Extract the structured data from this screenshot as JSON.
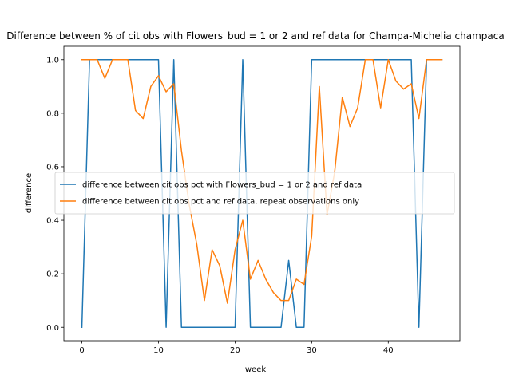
{
  "chart_data": {
    "type": "line",
    "title": "Difference between % of cit obs with Flowers_bud = 1 or 2 and ref data for Champa-Michelia champaca",
    "xlabel": "week",
    "ylabel": "difference",
    "xlim": [
      -2.35,
      49.35
    ],
    "ylim": [
      -0.05,
      1.05
    ],
    "xticks": [
      0,
      10,
      20,
      30,
      40
    ],
    "yticks": [
      0.0,
      0.2,
      0.4,
      0.6,
      0.8,
      1.0
    ],
    "xtick_labels": [
      "0",
      "10",
      "20",
      "30",
      "40"
    ],
    "ytick_labels": [
      "0.0",
      "0.2",
      "0.4",
      "0.6",
      "0.8",
      "1.0"
    ],
    "grid": false,
    "legend_position": "center-right",
    "series": [
      {
        "name": "difference between cit obs pct with Flowers_bud = 1 or 2 and ref data",
        "color": "#1f77b4",
        "x": [
          0,
          1,
          2,
          3,
          4,
          5,
          6,
          7,
          8,
          9,
          10,
          11,
          12,
          13,
          14,
          15,
          16,
          17,
          18,
          19,
          20,
          21,
          22,
          23,
          24,
          25,
          26,
          27,
          28,
          29,
          30,
          31,
          32,
          33,
          34,
          35,
          36,
          37,
          38,
          39,
          40,
          41,
          42,
          43,
          44,
          45,
          46,
          47
        ],
        "values": [
          0,
          1,
          1,
          1,
          1,
          1,
          1,
          1,
          1,
          1,
          1,
          0,
          1,
          0,
          0,
          0,
          0,
          0,
          0,
          0,
          0,
          1,
          0,
          0,
          0,
          0,
          0,
          0.25,
          0,
          0,
          1,
          1,
          1,
          1,
          1,
          1,
          1,
          1,
          1,
          1,
          1,
          1,
          1,
          1,
          0,
          1,
          1,
          1
        ]
      },
      {
        "name": "difference between cit obs pct and ref data, repeat observations only",
        "color": "#ff7f0e",
        "x": [
          0,
          1,
          2,
          3,
          4,
          5,
          6,
          7,
          8,
          9,
          10,
          11,
          12,
          13,
          14,
          15,
          16,
          17,
          18,
          19,
          20,
          21,
          22,
          23,
          24,
          25,
          26,
          27,
          28,
          29,
          30,
          31,
          32,
          33,
          34,
          35,
          36,
          37,
          38,
          39,
          40,
          41,
          42,
          43,
          44,
          45,
          46,
          47
        ],
        "values": [
          1,
          1,
          1,
          0.93,
          1,
          1,
          1,
          0.81,
          0.78,
          0.9,
          0.94,
          0.88,
          0.91,
          0.66,
          0.46,
          0.31,
          0.1,
          0.29,
          0.23,
          0.09,
          0.29,
          0.4,
          0.18,
          0.25,
          0.18,
          0.13,
          0.1,
          0.1,
          0.18,
          0.16,
          0.34,
          0.9,
          0.42,
          0.58,
          0.86,
          0.75,
          0.82,
          1,
          1,
          0.82,
          1,
          0.92,
          0.89,
          0.91,
          0.78,
          1,
          1,
          1
        ]
      }
    ]
  }
}
